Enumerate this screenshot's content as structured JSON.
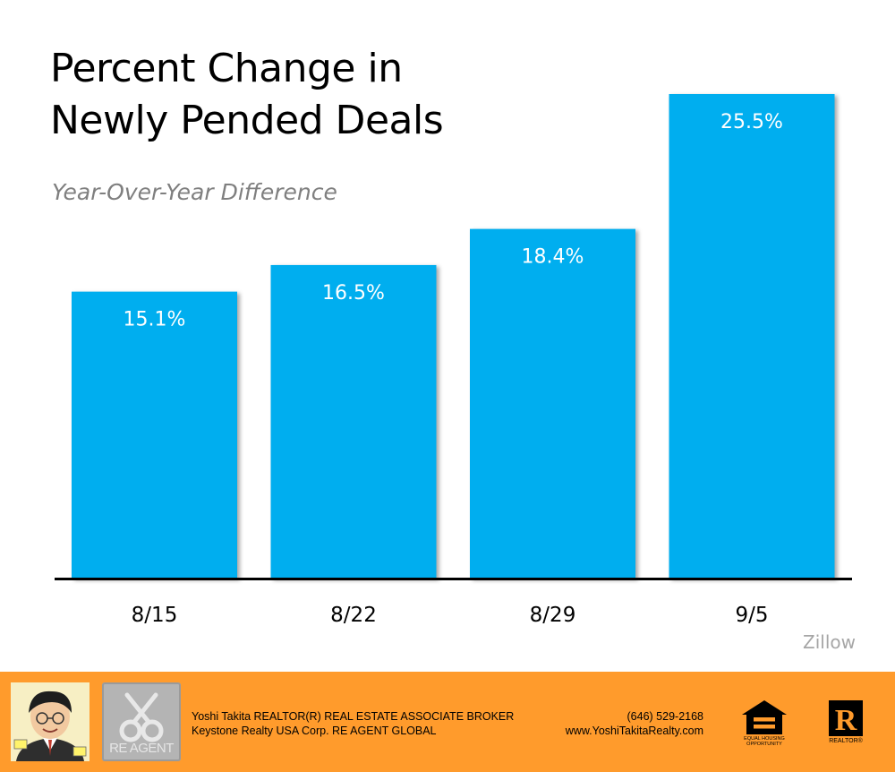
{
  "chart_data": {
    "type": "bar",
    "title": "Percent Change in Newly Pended Deals",
    "title_lines": [
      "Percent Change in",
      "Newly Pended Deals"
    ],
    "subtitle": "Year-Over-Year Difference",
    "categories": [
      "8/15",
      "8/22",
      "8/29",
      "9/5"
    ],
    "values": [
      15.1,
      16.5,
      18.4,
      25.5
    ],
    "data_labels": [
      "15.1%",
      "16.5%",
      "18.4%",
      "25.5%"
    ],
    "xlabel": "",
    "ylabel": "",
    "ylim": [
      0,
      25.5
    ],
    "grid": false,
    "legend": "none",
    "bar_color": "#00aeef",
    "source": "Zillow"
  },
  "footer": {
    "agent_line1": "Yoshi Takita REALTOR(R) REAL ESTATE ASSOCIATE BROKER",
    "agent_line2": "Keystone Realty USA Corp.  RE AGENT GLOBAL",
    "phone": "(646) 529-2168",
    "website": "www.YoshiTakitaRealty.com",
    "logo_text": "RE AGENT",
    "eho_text": "EQUAL HOUSING OPPORTUNITY",
    "realtor_text": "REALTOR®",
    "background_color": "#ff9b2c"
  }
}
